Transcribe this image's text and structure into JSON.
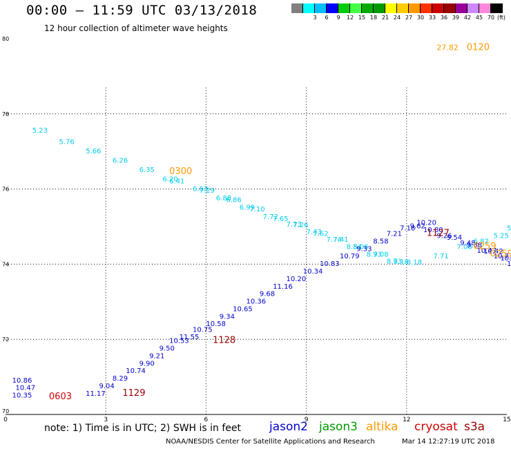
{
  "header": {
    "title": "00:00 – 11:59 UTC 03/13/2018",
    "subtitle": "12 hour collection of altimeter wave heights"
  },
  "colorbar": {
    "unit": "(ft)",
    "bins": [
      {
        "label": "",
        "color": "#808080"
      },
      {
        "label": "3",
        "color": "#00ffff"
      },
      {
        "label": "6",
        "color": "#00bfff"
      },
      {
        "label": "9",
        "color": "#0000ff"
      },
      {
        "label": "12",
        "color": "#00cc00"
      },
      {
        "label": "15",
        "color": "#44ff44"
      },
      {
        "label": "18",
        "color": "#00aa00"
      },
      {
        "label": "21",
        "color": "#009900"
      },
      {
        "label": "24",
        "color": "#ffff00"
      },
      {
        "label": "27",
        "color": "#ffcc00"
      },
      {
        "label": "30",
        "color": "#ff9900"
      },
      {
        "label": "33",
        "color": "#ff3300"
      },
      {
        "label": "36",
        "color": "#cc0000"
      },
      {
        "label": "39",
        "color": "#990000"
      },
      {
        "label": "42",
        "color": "#990099"
      },
      {
        "label": "45",
        "color": "#cc88ff"
      },
      {
        "label": "70",
        "color": "#ff88dd"
      },
      {
        "label": "",
        "color": "#000000"
      }
    ]
  },
  "footer": {
    "note": "note:  1) Time is in UTC;  2) SWH is in feet",
    "satellites": [
      {
        "name": "jason2",
        "color": "#0000cc"
      },
      {
        "name": "jason3",
        "color": "#009900"
      },
      {
        "name": "altika",
        "color": "#ff9900"
      },
      {
        "name": "cryosat",
        "color": "#cc0000"
      },
      {
        "name": "s3a",
        "color": "#990000"
      }
    ],
    "credit": "NOAA/NESDIS Center for Satellite Applications and Research",
    "timestamp": "Mar 14 12:27:19 UTC 2018"
  },
  "chart_data": {
    "type": "scatter",
    "title": "",
    "xlabel": "",
    "ylabel": "",
    "xlim": [
      0,
      15
    ],
    "ylim": [
      70,
      80
    ],
    "x_ticks": [
      "0",
      "3",
      "6",
      "9",
      "12",
      "15"
    ],
    "y_ticks": [
      {
        "label": "70",
        "value": 70
      },
      {
        "label": "72",
        "value": 72
      },
      {
        "label": "74",
        "value": 74
      },
      {
        "label": "76",
        "value": 76
      },
      {
        "label": "78",
        "value": 78
      },
      {
        "label": "80",
        "value": 80
      }
    ],
    "grid": true,
    "series": [
      {
        "name": "",
        "color": "#00ccee",
        "points": [
          {
            "x": 0.8,
            "y": 77.5,
            "label": "5.23"
          },
          {
            "x": 1.6,
            "y": 77.2,
            "label": "5.76"
          },
          {
            "x": 2.4,
            "y": 76.95,
            "label": "5.66"
          },
          {
            "x": 3.2,
            "y": 76.7,
            "label": "6.26"
          },
          {
            "x": 4.0,
            "y": 76.45,
            "label": "6.35"
          },
          {
            "x": 4.7,
            "y": 76.2,
            "label": "6.20"
          },
          {
            "x": 4.9,
            "y": 76.15,
            "label": "6.41"
          },
          {
            "x": 5.6,
            "y": 75.95,
            "label": "6.63"
          },
          {
            "x": 5.8,
            "y": 75.9,
            "label": "7.29"
          },
          {
            "x": 6.3,
            "y": 75.7,
            "label": "6.88"
          },
          {
            "x": 6.6,
            "y": 75.65,
            "label": "6.86"
          },
          {
            "x": 7.0,
            "y": 75.45,
            "label": "6.99"
          },
          {
            "x": 7.3,
            "y": 75.4,
            "label": "7.10"
          },
          {
            "x": 7.7,
            "y": 75.2,
            "label": "7.72"
          },
          {
            "x": 8.0,
            "y": 75.15,
            "label": "7.65"
          },
          {
            "x": 8.4,
            "y": 75.0,
            "label": "7.73"
          },
          {
            "x": 8.6,
            "y": 74.98,
            "label": "7.26"
          },
          {
            "x": 9.0,
            "y": 74.8,
            "label": "7.43"
          },
          {
            "x": 9.2,
            "y": 74.75,
            "label": "7.62"
          },
          {
            "x": 9.6,
            "y": 74.6,
            "label": "7.74"
          },
          {
            "x": 9.8,
            "y": 74.6,
            "label": "7.41"
          },
          {
            "x": 10.2,
            "y": 74.4,
            "label": "8.54"
          },
          {
            "x": 10.4,
            "y": 74.4,
            "label": "8.06"
          },
          {
            "x": 10.8,
            "y": 74.2,
            "label": "8.73"
          },
          {
            "x": 11.0,
            "y": 74.2,
            "label": "9.08"
          },
          {
            "x": 11.4,
            "y": 74.02,
            "label": "8.73"
          },
          {
            "x": 11.6,
            "y": 74.0,
            "label": "9.18"
          },
          {
            "x": 12.0,
            "y": 73.99,
            "label": "8.18"
          },
          {
            "x": 12.8,
            "y": 74.15,
            "label": "7.71"
          },
          {
            "x": 13.5,
            "y": 74.4,
            "label": "7.08"
          },
          {
            "x": 14.0,
            "y": 74.55,
            "label": "6.82"
          },
          {
            "x": 14.6,
            "y": 74.7,
            "label": "5.25"
          },
          {
            "x": 15.0,
            "y": 74.9,
            "label": "5."
          }
        ]
      },
      {
        "name": "",
        "color": "#0000cc",
        "points": [
          {
            "x": 0.2,
            "y": 70.85,
            "label": "10.86"
          },
          {
            "x": 0.3,
            "y": 70.65,
            "label": "10.47"
          },
          {
            "x": 0.2,
            "y": 70.45,
            "label": "10.35"
          },
          {
            "x": 2.4,
            "y": 70.5,
            "label": "11.17"
          },
          {
            "x": 2.8,
            "y": 70.7,
            "label": "9.04"
          },
          {
            "x": 3.2,
            "y": 70.9,
            "label": "8.29"
          },
          {
            "x": 3.6,
            "y": 71.1,
            "label": "10.74"
          },
          {
            "x": 4.0,
            "y": 71.3,
            "label": "9.90"
          },
          {
            "x": 4.3,
            "y": 71.5,
            "label": "9.21"
          },
          {
            "x": 4.6,
            "y": 71.7,
            "label": "9.50"
          },
          {
            "x": 4.9,
            "y": 71.9,
            "label": "10.53"
          },
          {
            "x": 5.2,
            "y": 72.0,
            "label": "11.55"
          },
          {
            "x": 5.6,
            "y": 72.2,
            "label": "10.75"
          },
          {
            "x": 6.0,
            "y": 72.35,
            "label": "10.58"
          },
          {
            "x": 6.4,
            "y": 72.55,
            "label": "9.34"
          },
          {
            "x": 6.8,
            "y": 72.75,
            "label": "10.65"
          },
          {
            "x": 7.2,
            "y": 72.95,
            "label": "10.36"
          },
          {
            "x": 7.6,
            "y": 73.15,
            "label": "9.68"
          },
          {
            "x": 8.0,
            "y": 73.35,
            "label": "11.16"
          },
          {
            "x": 8.4,
            "y": 73.55,
            "label": "10.20"
          },
          {
            "x": 8.9,
            "y": 73.75,
            "label": "10.34"
          },
          {
            "x": 9.4,
            "y": 73.95,
            "label": "10.83"
          },
          {
            "x": 10.0,
            "y": 74.15,
            "label": "10.79"
          },
          {
            "x": 10.5,
            "y": 74.35,
            "label": "9.33"
          },
          {
            "x": 11.0,
            "y": 74.55,
            "label": "8.58"
          },
          {
            "x": 11.4,
            "y": 74.75,
            "label": "7.21"
          },
          {
            "x": 11.8,
            "y": 74.9,
            "label": "7.18"
          },
          {
            "x": 12.1,
            "y": 74.95,
            "label": "9.62"
          },
          {
            "x": 12.3,
            "y": 75.05,
            "label": "10.20"
          },
          {
            "x": 12.5,
            "y": 74.85,
            "label": "10.80"
          },
          {
            "x": 12.9,
            "y": 74.7,
            "label": "9.26"
          },
          {
            "x": 13.2,
            "y": 74.65,
            "label": "9.54"
          },
          {
            "x": 13.6,
            "y": 74.5,
            "label": "9.48"
          },
          {
            "x": 13.8,
            "y": 74.45,
            "label": "9.38"
          },
          {
            "x": 14.1,
            "y": 74.3,
            "label": "10.47"
          },
          {
            "x": 14.3,
            "y": 74.28,
            "label": "10.42"
          },
          {
            "x": 14.6,
            "y": 74.15,
            "label": "10.73"
          },
          {
            "x": 14.8,
            "y": 74.1,
            "label": "10.92"
          },
          {
            "x": 15.0,
            "y": 73.95,
            "label": "10."
          }
        ]
      }
    ],
    "pass_labels": [
      {
        "x": 1.3,
        "y": 70.4,
        "label": "0603",
        "color": "#cc0000"
      },
      {
        "x": 3.5,
        "y": 70.5,
        "label": "1129",
        "color": "#990000"
      },
      {
        "x": 6.2,
        "y": 71.9,
        "label": "1128",
        "color": "#990000"
      },
      {
        "x": 4.9,
        "y": 76.4,
        "label": "0300",
        "color": "#ff9900"
      },
      {
        "x": 13.8,
        "y": 79.7,
        "label": "0120",
        "color": "#ff9900"
      },
      {
        "x": 12.6,
        "y": 74.75,
        "label": "1127",
        "color": "#990000"
      },
      {
        "x": 14.0,
        "y": 74.4,
        "label": "0259",
        "color": "#ff9900"
      },
      {
        "x": 14.5,
        "y": 74.2,
        "label": "0259",
        "color": "#ff9900"
      }
    ],
    "other_labels": [
      {
        "x": 12.9,
        "y": 79.7,
        "label": "27.82",
        "color": "#ff9900"
      }
    ]
  }
}
